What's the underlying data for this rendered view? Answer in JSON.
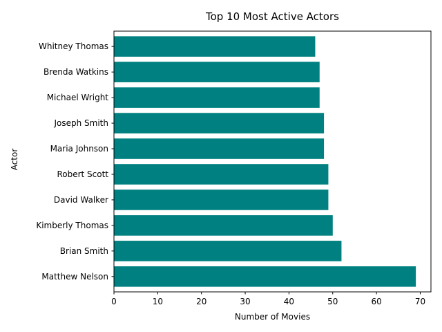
{
  "chart_data": {
    "type": "bar",
    "orientation": "horizontal",
    "title": "Top 10 Most Active Actors",
    "xlabel": "Number of Movies",
    "ylabel": "Actor",
    "categories": [
      "Matthew Nelson",
      "Brian Smith",
      "Kimberly Thomas",
      "David Walker",
      "Robert Scott",
      "Maria Johnson",
      "Joseph Smith",
      "Michael Wright",
      "Brenda Watkins",
      "Whitney Thomas"
    ],
    "values": [
      69,
      52,
      50,
      49,
      49,
      48,
      48,
      47,
      47,
      46
    ],
    "xlim": [
      0,
      72.45
    ],
    "xticks": [
      0,
      10,
      20,
      30,
      40,
      50,
      60,
      70
    ],
    "bar_color": "#008080",
    "grid": false,
    "legend": "none"
  }
}
